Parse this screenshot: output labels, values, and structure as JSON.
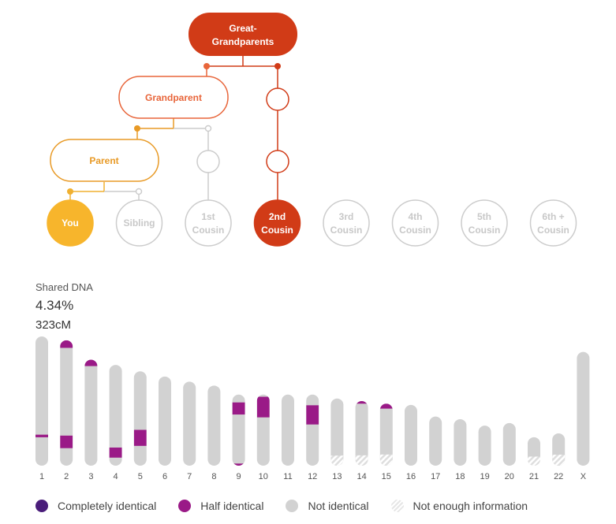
{
  "tree": {
    "nodes": {
      "great_grandparents": {
        "line1": "Great-",
        "line2": "Grandparents"
      },
      "grandparent": "Grandparent",
      "parent": "Parent"
    },
    "relationships": [
      {
        "line1": "You",
        "line2": "",
        "state": "you"
      },
      {
        "line1": "Sibling",
        "line2": "",
        "state": "inactive"
      },
      {
        "line1": "1st",
        "line2": "Cousin",
        "state": "inactive"
      },
      {
        "line1": "2nd",
        "line2": "Cousin",
        "state": "selected"
      },
      {
        "line1": "3rd",
        "line2": "Cousin",
        "state": "inactive"
      },
      {
        "line1": "4th",
        "line2": "Cousin",
        "state": "inactive"
      },
      {
        "line1": "5th",
        "line2": "Cousin",
        "state": "inactive"
      },
      {
        "line1": "6th +",
        "line2": "Cousin",
        "state": "inactive"
      }
    ]
  },
  "stats": {
    "label": "Shared DNA",
    "percent": "4.34%",
    "centimorgans": "323cM"
  },
  "chromosomes": {
    "items": [
      {
        "label": "1",
        "length": 1.0,
        "half": [
          [
            0.76,
            0.78
          ]
        ],
        "complete": [],
        "noinfo": []
      },
      {
        "label": "2",
        "length": 0.97,
        "half": [
          [
            0.0,
            0.06
          ],
          [
            0.76,
            0.86
          ]
        ],
        "complete": [],
        "noinfo": []
      },
      {
        "label": "3",
        "length": 0.82,
        "half": [
          [
            0.0,
            0.06
          ]
        ],
        "complete": [],
        "noinfo": []
      },
      {
        "label": "4",
        "length": 0.78,
        "half": [
          [
            0.82,
            0.92
          ]
        ],
        "complete": [],
        "noinfo": []
      },
      {
        "label": "5",
        "length": 0.73,
        "half": [
          [
            0.62,
            0.79
          ]
        ],
        "complete": [],
        "noinfo": []
      },
      {
        "label": "6",
        "length": 0.69,
        "half": [],
        "complete": [],
        "noinfo": []
      },
      {
        "label": "7",
        "length": 0.65,
        "half": [],
        "complete": [],
        "noinfo": []
      },
      {
        "label": "8",
        "length": 0.62,
        "half": [],
        "complete": [],
        "noinfo": []
      },
      {
        "label": "9",
        "length": 0.55,
        "half": [
          [
            0.11,
            0.28
          ],
          [
            0.97,
            1.0
          ]
        ],
        "complete": [],
        "noinfo": []
      },
      {
        "label": "10",
        "length": 0.55,
        "half": [
          [
            0.03,
            0.32
          ]
        ],
        "complete": [],
        "noinfo": []
      },
      {
        "label": "11",
        "length": 0.55,
        "half": [],
        "complete": [],
        "noinfo": []
      },
      {
        "label": "12",
        "length": 0.55,
        "half": [
          [
            0.15,
            0.42
          ]
        ],
        "complete": [],
        "noinfo": []
      },
      {
        "label": "13",
        "length": 0.52,
        "half": [],
        "complete": [],
        "noinfo": [
          [
            0.85,
            1.0
          ]
        ]
      },
      {
        "label": "14",
        "length": 0.5,
        "half": [
          [
            0.0,
            0.04
          ]
        ],
        "complete": [],
        "noinfo": [
          [
            0.84,
            1.0
          ]
        ]
      },
      {
        "label": "15",
        "length": 0.48,
        "half": [
          [
            0.0,
            0.08
          ]
        ],
        "complete": [],
        "noinfo": [
          [
            0.82,
            1.0
          ]
        ]
      },
      {
        "label": "16",
        "length": 0.47,
        "half": [],
        "complete": [],
        "noinfo": []
      },
      {
        "label": "17",
        "length": 0.38,
        "half": [],
        "complete": [],
        "noinfo": []
      },
      {
        "label": "18",
        "length": 0.36,
        "half": [],
        "complete": [],
        "noinfo": []
      },
      {
        "label": "19",
        "length": 0.31,
        "half": [],
        "complete": [],
        "noinfo": []
      },
      {
        "label": "20",
        "length": 0.33,
        "half": [],
        "complete": [],
        "noinfo": []
      },
      {
        "label": "21",
        "length": 0.22,
        "half": [],
        "complete": [],
        "noinfo": [
          [
            0.68,
            1.0
          ]
        ]
      },
      {
        "label": "22",
        "length": 0.25,
        "half": [],
        "complete": [],
        "noinfo": [
          [
            0.66,
            1.0
          ]
        ]
      },
      {
        "label": "X",
        "length": 0.88,
        "half": [],
        "complete": [],
        "noinfo": []
      }
    ]
  },
  "legend": {
    "completely_identical": "Completely identical",
    "half_identical": "Half identical",
    "not_identical": "Not identical",
    "not_enough_info": "Not enough information"
  },
  "colors": {
    "great_grandparents": "#d13b17",
    "grandparent": "#e8653a",
    "parent": "#e89a26",
    "you": "#f7b52c",
    "selected": "#d13b17",
    "inactive": "#cccccc",
    "half_identical": "#9a1a87",
    "completely_identical": "#4a1d7a",
    "not_identical": "#d2d2d2"
  }
}
